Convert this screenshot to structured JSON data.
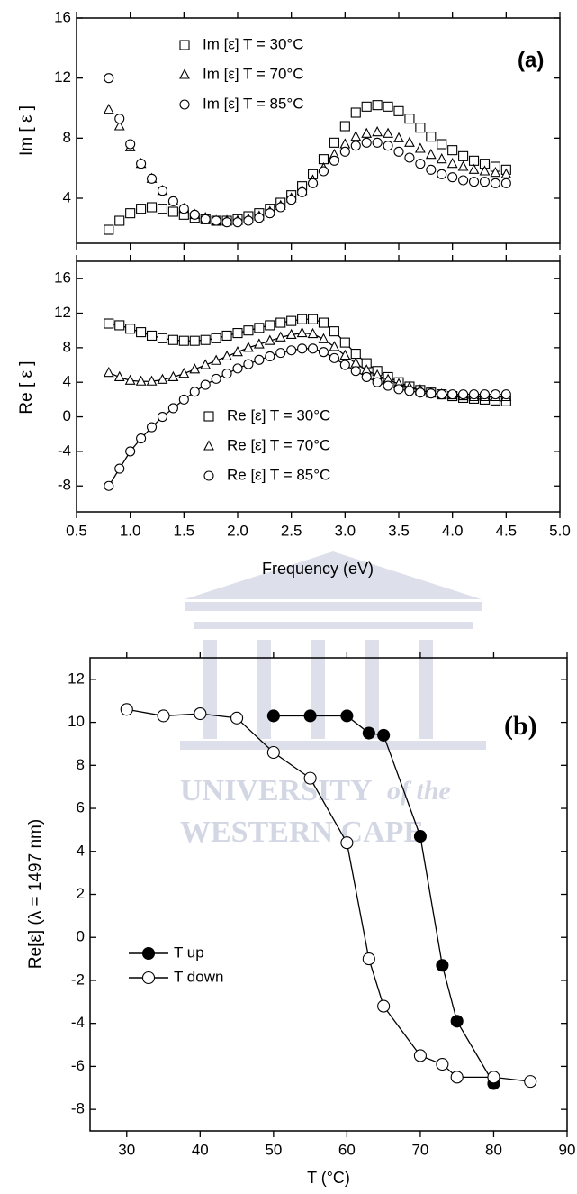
{
  "chart_data": [
    {
      "type": "scatter",
      "y_label": "Im [ ε ]",
      "annotation": "(a)",
      "legend": "upper left",
      "line": false,
      "xtick_labels": false,
      "xlim": [
        0.5,
        5.0
      ],
      "ylim": [
        1,
        16
      ],
      "xticks": [
        0.5,
        1,
        1.5,
        2,
        2.5,
        3,
        3.5,
        4,
        4.5,
        5
      ],
      "yticks": [
        4,
        8,
        12,
        16
      ],
      "x": [
        0.8,
        0.9,
        1.0,
        1.1,
        1.2,
        1.3,
        1.4,
        1.5,
        1.6,
        1.7,
        1.8,
        1.9,
        2.0,
        2.1,
        2.2,
        2.3,
        2.4,
        2.5,
        2.6,
        2.7,
        2.8,
        2.9,
        3.0,
        3.1,
        3.2,
        3.3,
        3.4,
        3.5,
        3.6,
        3.7,
        3.8,
        3.9,
        4.0,
        4.1,
        4.2,
        4.3,
        4.4,
        4.5
      ],
      "series": [
        {
          "name": "Im [ε] T = 30°C",
          "marker": "square",
          "color": "#000000",
          "filled": false,
          "values": [
            1.9,
            2.5,
            3.0,
            3.3,
            3.4,
            3.3,
            3.1,
            2.9,
            2.7,
            2.6,
            2.5,
            2.5,
            2.6,
            2.8,
            3.0,
            3.3,
            3.7,
            4.2,
            4.8,
            5.6,
            6.6,
            7.7,
            8.8,
            9.7,
            10.1,
            10.2,
            10.1,
            9.8,
            9.3,
            8.7,
            8.1,
            7.6,
            7.2,
            6.8,
            6.5,
            6.3,
            6.1,
            5.9
          ]
        },
        {
          "name": "Im [ε] T = 70°C",
          "marker": "triangle",
          "color": "#000000",
          "filled": false,
          "values": [
            9.9,
            8.8,
            7.4,
            6.3,
            5.3,
            4.5,
            3.8,
            3.3,
            2.9,
            2.7,
            2.5,
            2.5,
            2.5,
            2.6,
            2.8,
            3.1,
            3.5,
            4.0,
            4.5,
            5.2,
            6.0,
            6.9,
            7.6,
            8.1,
            8.3,
            8.4,
            8.3,
            8.0,
            7.7,
            7.3,
            6.9,
            6.6,
            6.3,
            6.1,
            5.9,
            5.8,
            5.7,
            5.6
          ]
        },
        {
          "name": "Im [ε] T = 85°C",
          "marker": "circle",
          "color": "#000000",
          "filled": false,
          "values": [
            12.0,
            9.3,
            7.6,
            6.3,
            5.3,
            4.5,
            3.8,
            3.3,
            2.9,
            2.6,
            2.5,
            2.4,
            2.4,
            2.5,
            2.7,
            3.0,
            3.4,
            3.9,
            4.4,
            5.0,
            5.8,
            6.5,
            7.1,
            7.5,
            7.7,
            7.7,
            7.5,
            7.1,
            6.7,
            6.3,
            5.9,
            5.6,
            5.4,
            5.2,
            5.1,
            5.1,
            5.0,
            5.0
          ]
        }
      ]
    },
    {
      "type": "scatter",
      "y_label": "Re [ ε ]",
      "x_label": "Frequency (eV)",
      "legend": "lower center",
      "line": true,
      "xtick_labels": true,
      "xlim": [
        0.5,
        5.0
      ],
      "ylim": [
        -11,
        18
      ],
      "xticks": [
        0.5,
        {
          "value": 1,
          "label": "1.0"
        },
        1.5,
        {
          "value": 2,
          "label": "2.0"
        },
        2.5,
        {
          "value": 3,
          "label": "3.0"
        },
        3.5,
        {
          "value": 4,
          "label": "4.0"
        },
        4.5,
        {
          "value": 5,
          "label": "5.0"
        }
      ],
      "yticks": [
        -8,
        -4,
        0,
        4,
        8,
        12,
        16
      ],
      "x": [
        0.8,
        0.9,
        1.0,
        1.1,
        1.2,
        1.3,
        1.4,
        1.5,
        1.6,
        1.7,
        1.8,
        1.9,
        2.0,
        2.1,
        2.2,
        2.3,
        2.4,
        2.5,
        2.6,
        2.7,
        2.8,
        2.9,
        3.0,
        3.1,
        3.2,
        3.3,
        3.4,
        3.5,
        3.6,
        3.7,
        3.8,
        3.9,
        4.0,
        4.1,
        4.2,
        4.3,
        4.4,
        4.5
      ],
      "series": [
        {
          "name": "Re [ε] T = 30°C",
          "marker": "square",
          "color": "#000000",
          "filled": false,
          "values": [
            10.8,
            10.6,
            10.2,
            9.8,
            9.4,
            9.1,
            8.9,
            8.8,
            8.8,
            8.9,
            9.1,
            9.4,
            9.7,
            10.0,
            10.3,
            10.6,
            10.9,
            11.1,
            11.3,
            11.3,
            10.9,
            9.9,
            8.6,
            7.3,
            6.2,
            5.3,
            4.6,
            4.0,
            3.5,
            3.1,
            2.8,
            2.6,
            2.4,
            2.2,
            2.1,
            2.0,
            1.9,
            1.8
          ]
        },
        {
          "name": "Re [ε] T = 70°C",
          "marker": "triangle",
          "color": "#000000",
          "filled": false,
          "values": [
            5.1,
            4.6,
            4.2,
            4.1,
            4.1,
            4.3,
            4.6,
            5.0,
            5.5,
            6.0,
            6.5,
            7.0,
            7.5,
            8.0,
            8.4,
            8.8,
            9.2,
            9.5,
            9.7,
            9.6,
            9.0,
            8.1,
            7.1,
            6.2,
            5.4,
            4.8,
            4.3,
            3.8,
            3.4,
            3.1,
            2.8,
            2.6,
            2.5,
            2.4,
            2.3,
            2.3,
            2.3,
            2.3
          ]
        },
        {
          "name": "Re [ε] T = 85°C",
          "marker": "circle",
          "color": "#000000",
          "filled": false,
          "values": [
            -8.0,
            -6.0,
            -4.0,
            -2.5,
            -1.2,
            0.0,
            1.0,
            2.0,
            2.9,
            3.7,
            4.4,
            5.0,
            5.6,
            6.1,
            6.6,
            7.0,
            7.4,
            7.7,
            7.9,
            7.9,
            7.5,
            6.8,
            6.0,
            5.3,
            4.6,
            4.0,
            3.6,
            3.2,
            3.0,
            2.8,
            2.7,
            2.6,
            2.6,
            2.6,
            2.6,
            2.6,
            2.6,
            2.6
          ]
        }
      ]
    },
    {
      "type": "scatter",
      "y_label": "Re[ε] (λ = 1497 nm)",
      "x_label": "T (°C)",
      "annotation": "(b)",
      "legend": "lower left",
      "line": true,
      "xtick_labels": true,
      "xlim": [
        25,
        90
      ],
      "ylim": [
        -9,
        13
      ],
      "xticks": [
        30,
        40,
        50,
        60,
        70,
        80,
        90
      ],
      "yticks": [
        -8,
        -6,
        -4,
        -2,
        0,
        2,
        4,
        6,
        8,
        10,
        12
      ],
      "series": [
        {
          "name": "T up",
          "marker": "circle",
          "color": "#000000",
          "filled": true,
          "x": [
            50,
            55,
            60,
            63,
            65,
            70,
            73,
            75,
            80
          ],
          "values": [
            10.3,
            10.3,
            10.3,
            9.5,
            9.4,
            4.7,
            -1.3,
            -3.9,
            -6.8
          ]
        },
        {
          "name": "T down",
          "marker": "circle",
          "color": "#000000",
          "filled": false,
          "x": [
            30,
            35,
            40,
            45,
            50,
            55,
            60,
            63,
            65,
            70,
            73,
            75,
            80,
            85
          ],
          "values": [
            10.6,
            10.3,
            10.4,
            10.2,
            8.6,
            7.4,
            4.4,
            -1.0,
            -3.2,
            -5.5,
            -5.9,
            -6.5,
            -6.5,
            -6.7
          ]
        }
      ]
    }
  ],
  "watermark": {
    "line1": "UNIVERSITY",
    "line2": "of the",
    "line3": "WESTERN CAPE"
  }
}
